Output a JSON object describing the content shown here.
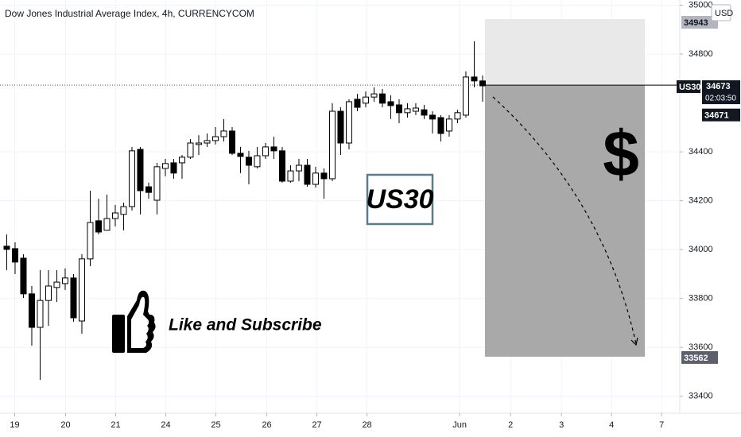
{
  "chart_data": {
    "type": "candlestick",
    "title": "Dow Jones Industrial Average Index, 4h, CURRENCYCOM",
    "currency": "USD",
    "categories": [
      null,
      null,
      null,
      null,
      null,
      null,
      null,
      null,
      null,
      null,
      null,
      null,
      null,
      null,
      null,
      null,
      null,
      null,
      null,
      null,
      null,
      null,
      null,
      null,
      null,
      null,
      null,
      null,
      null,
      null,
      null,
      null,
      null,
      null,
      null,
      null,
      null,
      null,
      null,
      null,
      null,
      null,
      null,
      null,
      null,
      null,
      null,
      null,
      null,
      null,
      null,
      null,
      null,
      null,
      null,
      null,
      null,
      null
    ],
    "series": {
      "open": [
        34014,
        34004,
        33965,
        33819,
        33682,
        33792,
        33845,
        33861,
        33884,
        33708,
        33962,
        34118,
        34079,
        34127,
        34144,
        34176,
        34410,
        34257,
        34202,
        34332,
        34355,
        34355,
        34378,
        34430,
        34436,
        34446,
        34462,
        34485,
        34394,
        34378,
        34339,
        34384,
        34420,
        34404,
        34280,
        34322,
        34345,
        34267,
        34313,
        34290,
        34566,
        34436,
        34615,
        34599,
        34624,
        34637,
        34605,
        34592,
        34560,
        34566,
        34572,
        34550,
        34540,
        34485,
        34534,
        34550,
        34706,
        34690
      ],
      "high": [
        34062,
        34030,
        33981,
        33851,
        33916,
        33916,
        33916,
        33923,
        33900,
        33981,
        34241,
        34208,
        34225,
        34183,
        34192,
        34420,
        34420,
        34274,
        34355,
        34371,
        34371,
        34387,
        34452,
        34468,
        34475,
        34501,
        34534,
        34501,
        34420,
        34404,
        34420,
        34436,
        34462,
        34420,
        34345,
        34371,
        34371,
        34339,
        34332,
        34599,
        34582,
        34615,
        34637,
        34647,
        34664,
        34657,
        34631,
        34615,
        34599,
        34599,
        34592,
        34566,
        34550,
        34550,
        34572,
        34729,
        34852,
        34712
      ],
      "low": [
        33916,
        33900,
        33802,
        33607,
        33467,
        33688,
        33786,
        33835,
        33705,
        33656,
        33932,
        34062,
        34079,
        34095,
        34079,
        34160,
        34144,
        34208,
        34144,
        34300,
        34290,
        34290,
        34371,
        34387,
        34420,
        34430,
        34442,
        34387,
        34313,
        34267,
        34332,
        34371,
        34371,
        34274,
        34274,
        34280,
        34257,
        34254,
        34208,
        34280,
        34387,
        34410,
        34566,
        34582,
        34605,
        34582,
        34534,
        34517,
        34540,
        34550,
        34534,
        34475,
        34442,
        34462,
        34517,
        34540,
        34664,
        34605
      ],
      "close": [
        34001,
        33949,
        33819,
        33682,
        33792,
        33851,
        33867,
        33884,
        33721,
        33962,
        34111,
        34072,
        34127,
        34150,
        34176,
        34404,
        34241,
        34234,
        34339,
        34352,
        34313,
        34378,
        34436,
        34436,
        34446,
        34462,
        34485,
        34394,
        34381,
        34345,
        34384,
        34420,
        34404,
        34280,
        34322,
        34345,
        34267,
        34313,
        34290,
        34566,
        34436,
        34605,
        34582,
        34624,
        34637,
        34599,
        34589,
        34560,
        34576,
        34579,
        34550,
        34534,
        34475,
        34534,
        34560,
        34706,
        34690,
        34670
      ]
    },
    "up_color": "#ffffff",
    "down_color": "#000000",
    "ylim": [
      33331,
      35021
    ],
    "yticks": [
      33400,
      33600,
      33800,
      34000,
      34200,
      34400,
      34800,
      35000
    ],
    "xlim": [
      -0.76,
      80.67
    ],
    "xticks": [
      {
        "value": 1,
        "label": "19"
      },
      {
        "value": 7.1,
        "label": "20"
      },
      {
        "value": 13.1,
        "label": "21"
      },
      {
        "value": 19.1,
        "label": "24"
      },
      {
        "value": 25.1,
        "label": "25"
      },
      {
        "value": 31.2,
        "label": "26"
      },
      {
        "value": 37.2,
        "label": "27"
      },
      {
        "value": 43.2,
        "label": "28"
      },
      {
        "value": 54.3,
        "label": "Jun"
      },
      {
        "value": 60.4,
        "label": "2"
      },
      {
        "value": 66.5,
        "label": "3"
      },
      {
        "value": 72.5,
        "label": "4"
      },
      {
        "value": 78.5,
        "label": "7"
      }
    ],
    "grid": true,
    "last_price": {
      "symbol": "US30",
      "value": 34673,
      "countdown": "02:03:50"
    },
    "bid": 34671,
    "position": {
      "stop": 34943,
      "entry": 34673,
      "target": 33562
    },
    "annotations": {
      "symbol_box": "US30",
      "call_to_action": "Like and Subscribe",
      "icon": "$"
    }
  }
}
